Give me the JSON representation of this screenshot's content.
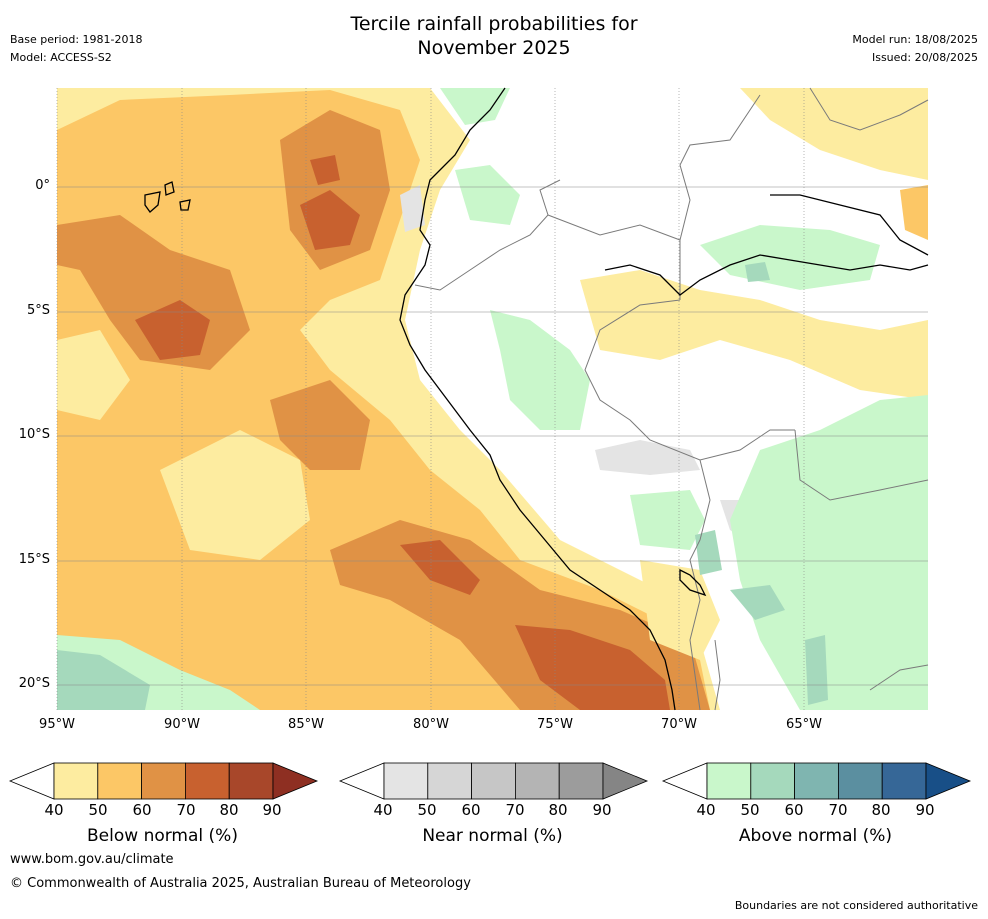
{
  "header": {
    "title_line1": "Tercile rainfall probabilities for",
    "title_line2": "November 2025",
    "base_period": "Base period: 1981-2018",
    "model": "Model: ACCESS-S2",
    "model_run": "Model run: 18/08/2025",
    "issued": "Issued: 20/08/2025"
  },
  "map": {
    "lat_labels": [
      "0°",
      "5°S",
      "10°S",
      "15°S",
      "20°S"
    ],
    "lon_labels": [
      "95°W",
      "90°W",
      "85°W",
      "80°W",
      "75°W",
      "70°W",
      "65°W"
    ],
    "colors": {
      "below": [
        "#fdeca0",
        "#fcc766",
        "#e09245",
        "#c8612f",
        "#a8472a",
        "#8e2f22"
      ],
      "near": [
        "#e4e4e4",
        "#d6d6d6",
        "#c6c6c6",
        "#b4b4b4",
        "#9c9c9c",
        "#858585"
      ],
      "above": [
        "#c9f7cb",
        "#a5d9bc",
        "#7fb5b0",
        "#5b8fa0",
        "#366797",
        "#184f87"
      ],
      "coast": "#000000",
      "border": "#7a7a7a",
      "grid": "#888888"
    }
  },
  "colorbars": [
    {
      "id": "below",
      "label": "Below normal (%)",
      "ticks": [
        "40",
        "50",
        "60",
        "70",
        "80",
        "90"
      ]
    },
    {
      "id": "near",
      "label": "Near normal (%)",
      "ticks": [
        "40",
        "50",
        "60",
        "70",
        "80",
        "90"
      ]
    },
    {
      "id": "above",
      "label": "Above normal (%)",
      "ticks": [
        "40",
        "50",
        "60",
        "70",
        "80",
        "90"
      ]
    }
  ],
  "footer": {
    "url": "www.bom.gov.au/climate",
    "copyright": "© Commonwealth of Australia 2025, Australian Bureau of Meteorology",
    "disclaimer": "Boundaries are not considered authoritative"
  }
}
